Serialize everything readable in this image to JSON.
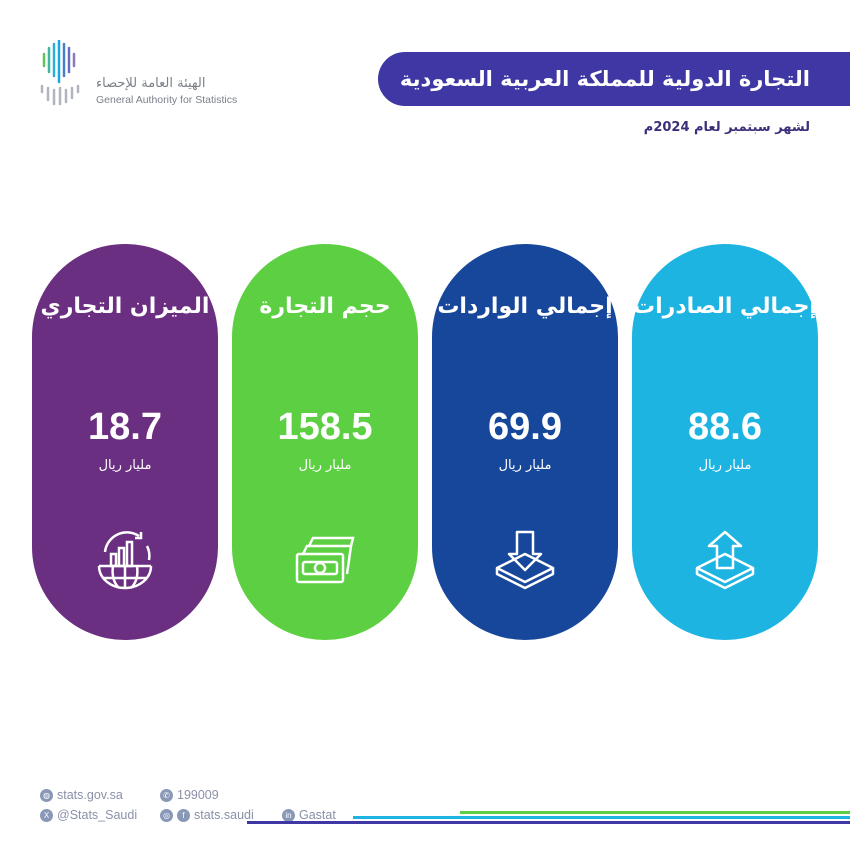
{
  "logo": {
    "name_ar": "الهيئة العامة للإحصاء",
    "name_en": "General Authority for Statistics"
  },
  "header": {
    "title": "التجارة الدولية للمملكة العربية السعودية",
    "subtitle": "لشهر سبتمبر لعام 2024م"
  },
  "cards": [
    {
      "title": "إجمالي الصادرات",
      "value": "88.6",
      "unit": "مليار ريال",
      "icon": "export-box-arrow-up-icon",
      "color": "#1db4e2"
    },
    {
      "title": "إجمالي الواردات",
      "value": "69.9",
      "unit": "مليار ريال",
      "icon": "import-box-arrow-down-icon",
      "color": "#16479a"
    },
    {
      "title": "حجم التجارة",
      "value": "158.5",
      "unit": "مليار ريال",
      "icon": "cash-stack-icon",
      "color": "#5ccf42"
    },
    {
      "title": "الميزان التجاري",
      "value": "18.7",
      "unit": "مليار ريال",
      "icon": "globe-growth-chart-icon",
      "color": "#6a2f80"
    }
  ],
  "footer": {
    "website": "stats.gov.sa",
    "phone": "199009",
    "x": "@Stats_Saudi",
    "social": "stats.saudi",
    "linkedin": "Gastat"
  }
}
